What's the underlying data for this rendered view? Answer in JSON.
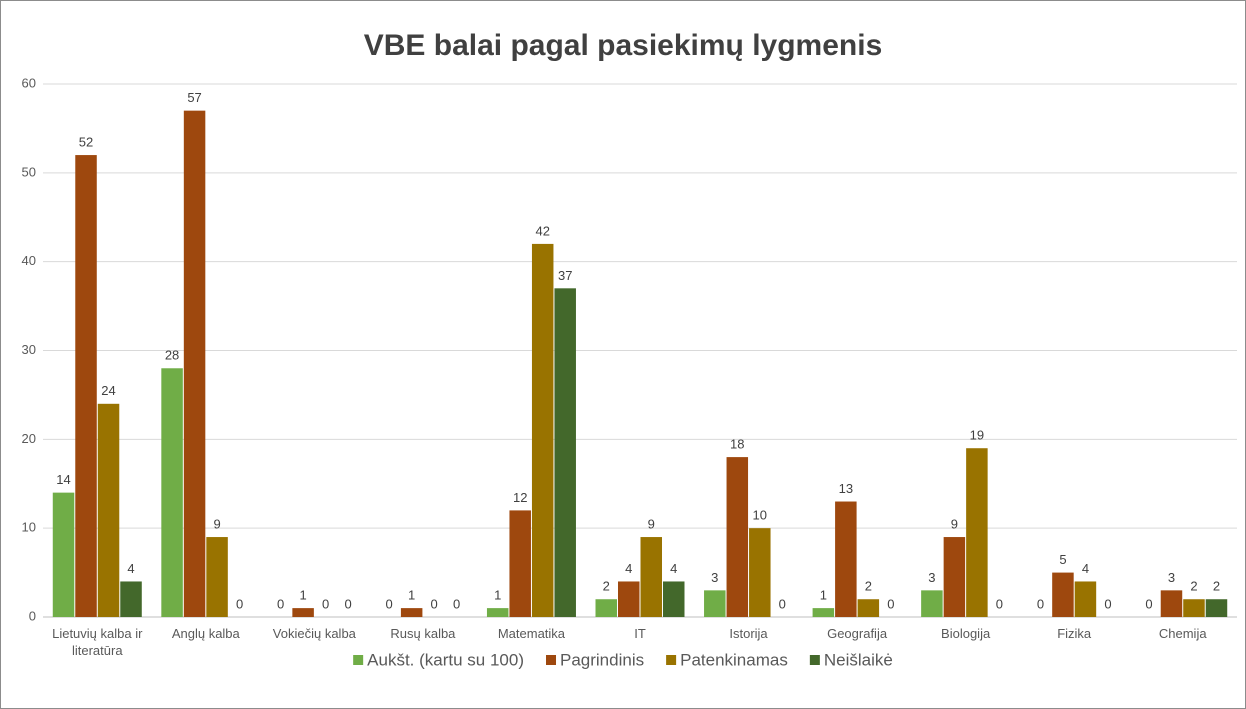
{
  "chart_data": {
    "type": "bar",
    "title": "VBE  balai pagal pasiekimų lygmenis",
    "categories": [
      "Lietuvių kalba ir literatūra",
      "Anglų kalba",
      "Vokiečių kalba",
      "Rusų kalba",
      "Matematika",
      "IT",
      "Istorija",
      "Geografija",
      "Biologija",
      "Fizika",
      "Chemija"
    ],
    "series": [
      {
        "name": "Aukšt. (kartu su 100)",
        "color": "#70ad47",
        "values": [
          14,
          28,
          0,
          0,
          1,
          2,
          3,
          1,
          3,
          0,
          0
        ]
      },
      {
        "name": "Pagrindinis",
        "color": "#9e480e",
        "values": [
          52,
          57,
          1,
          1,
          12,
          4,
          18,
          13,
          9,
          5,
          3
        ]
      },
      {
        "name": "Patenkinamas",
        "color": "#997300",
        "values": [
          24,
          9,
          0,
          0,
          42,
          9,
          10,
          2,
          19,
          4,
          2
        ]
      },
      {
        "name": "Neišlaikė",
        "color": "#43682b",
        "values": [
          4,
          0,
          0,
          0,
          37,
          4,
          0,
          0,
          0,
          0,
          2
        ]
      }
    ],
    "ylim": [
      0,
      60
    ],
    "yticks": [
      0,
      10,
      20,
      30,
      40,
      50,
      60
    ],
    "grid": true,
    "legend": "bottom"
  }
}
